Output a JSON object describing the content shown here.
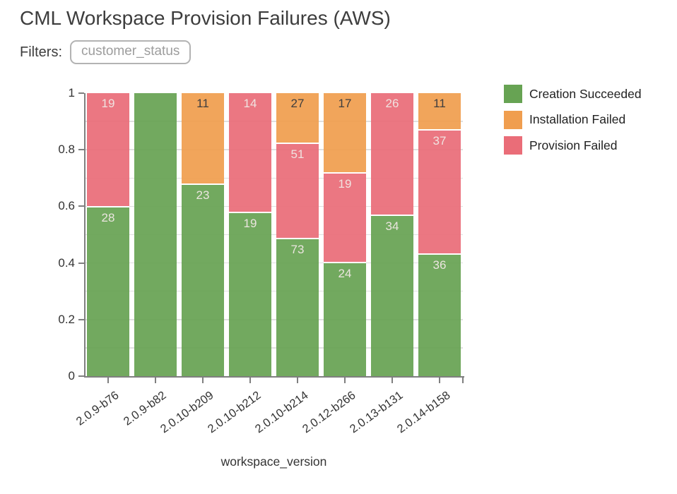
{
  "title": "CML Workspace Provision Failures (AWS)",
  "filters": {
    "label": "Filters:",
    "chip_value": "customer_status"
  },
  "legend": {
    "items": [
      {
        "label": "Creation Succeeded",
        "color": "#67a353"
      },
      {
        "label": "Installation Failed",
        "color": "#f09e4f"
      },
      {
        "label": "Provision Failed",
        "color": "#ea6d78"
      }
    ]
  },
  "chart_data": {
    "type": "bar",
    "variant": "stacked-normalized",
    "title": "CML Workspace Provision Failures (AWS)",
    "xlabel": "workspace_version",
    "ylabel": "",
    "ylim": [
      0,
      1
    ],
    "y_ticks": [
      {
        "value": 0,
        "label": "0"
      },
      {
        "value": 0.2,
        "label": "0.2"
      },
      {
        "value": 0.4,
        "label": "0.4"
      },
      {
        "value": 0.6,
        "label": "0.6"
      },
      {
        "value": 0.8,
        "label": "0.8"
      },
      {
        "value": 1,
        "label": "1"
      }
    ],
    "minor_gridline_step": 0.1,
    "grid": "horizontal",
    "legend_position": "outside-top-right",
    "categories": [
      "2.0.9-b76",
      "2.0.9-b82",
      "2.0.10-b209",
      "2.0.10-b212",
      "2.0.10-b214",
      "2.0.12-b266",
      "2.0.13-b131",
      "2.0.14-b158"
    ],
    "stack_order_bottom_to_top": [
      "Creation Succeeded",
      "Provision Failed",
      "Installation Failed"
    ],
    "series": [
      {
        "name": "Creation Succeeded",
        "color": "#67a353",
        "label_color": "#ebe5df",
        "values": [
          28,
          null,
          23,
          19,
          73,
          24,
          34,
          36
        ]
      },
      {
        "name": "Provision Failed",
        "color": "#ea6d78",
        "label_color": "#f0e3e0",
        "values": [
          19,
          0,
          0,
          14,
          51,
          19,
          26,
          37
        ]
      },
      {
        "name": "Installation Failed",
        "color": "#f09e4f",
        "label_color": "#3f3e3e",
        "values": [
          0,
          0,
          11,
          0,
          27,
          17,
          0,
          11
        ]
      }
    ],
    "note": "Bar heights are category-normalized fractions (count/total); 2.0.9-b82 is 100% Creation Succeeded and shows no count label."
  }
}
